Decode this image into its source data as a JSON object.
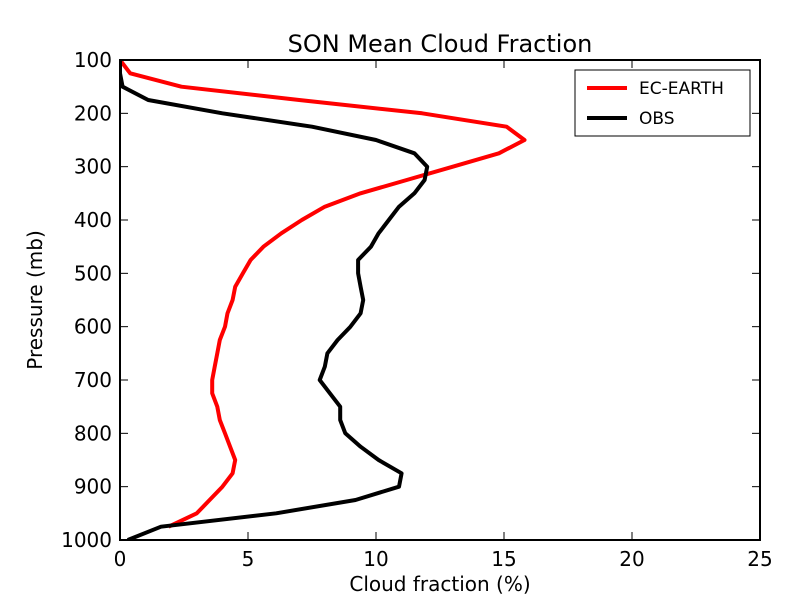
{
  "chart_data": {
    "type": "line",
    "title": "SON Mean Cloud Fraction",
    "xlabel": "Cloud fraction (%)",
    "ylabel": "Pressure (mb)",
    "xlim": [
      0,
      25
    ],
    "ylim": [
      1000,
      100
    ],
    "y_inverted": true,
    "xticks": [
      0,
      5,
      10,
      15,
      20,
      25
    ],
    "yticks": [
      100,
      200,
      300,
      400,
      500,
      600,
      700,
      800,
      900,
      1000
    ],
    "grid": false,
    "legend_position": "top-right",
    "series": [
      {
        "name": "EC-EARTH",
        "color": "#ff0000",
        "points": [
          [
            0.0,
            100
          ],
          [
            0.4,
            125
          ],
          [
            2.4,
            150
          ],
          [
            7.0,
            175
          ],
          [
            11.8,
            200
          ],
          [
            15.1,
            225
          ],
          [
            15.8,
            250
          ],
          [
            14.8,
            275
          ],
          [
            13.0,
            300
          ],
          [
            11.2,
            325
          ],
          [
            9.4,
            350
          ],
          [
            8.0,
            375
          ],
          [
            7.1,
            400
          ],
          [
            6.3,
            425
          ],
          [
            5.6,
            450
          ],
          [
            5.1,
            475
          ],
          [
            4.8,
            500
          ],
          [
            4.5,
            525
          ],
          [
            4.4,
            550
          ],
          [
            4.2,
            575
          ],
          [
            4.1,
            600
          ],
          [
            3.9,
            625
          ],
          [
            3.8,
            650
          ],
          [
            3.7,
            675
          ],
          [
            3.6,
            700
          ],
          [
            3.6,
            725
          ],
          [
            3.8,
            750
          ],
          [
            3.9,
            775
          ],
          [
            4.1,
            800
          ],
          [
            4.3,
            825
          ],
          [
            4.5,
            850
          ],
          [
            4.4,
            875
          ],
          [
            4.0,
            900
          ],
          [
            3.5,
            925
          ],
          [
            3.0,
            950
          ],
          [
            1.9,
            975
          ]
        ]
      },
      {
        "name": "OBS",
        "color": "#000000",
        "points": [
          [
            0.0,
            100
          ],
          [
            0.0,
            125
          ],
          [
            0.1,
            150
          ],
          [
            1.1,
            175
          ],
          [
            4.0,
            200
          ],
          [
            7.5,
            225
          ],
          [
            10.0,
            250
          ],
          [
            11.5,
            275
          ],
          [
            12.0,
            300
          ],
          [
            11.9,
            325
          ],
          [
            11.5,
            350
          ],
          [
            10.9,
            375
          ],
          [
            10.5,
            400
          ],
          [
            10.1,
            425
          ],
          [
            9.8,
            450
          ],
          [
            9.3,
            475
          ],
          [
            9.3,
            500
          ],
          [
            9.4,
            525
          ],
          [
            9.5,
            550
          ],
          [
            9.4,
            575
          ],
          [
            9.0,
            600
          ],
          [
            8.5,
            625
          ],
          [
            8.1,
            650
          ],
          [
            8.0,
            675
          ],
          [
            7.8,
            700
          ],
          [
            8.2,
            725
          ],
          [
            8.6,
            750
          ],
          [
            8.6,
            775
          ],
          [
            8.8,
            800
          ],
          [
            9.4,
            825
          ],
          [
            10.1,
            850
          ],
          [
            11.0,
            875
          ],
          [
            10.9,
            900
          ],
          [
            9.2,
            925
          ],
          [
            6.1,
            950
          ],
          [
            1.6,
            975
          ],
          [
            0.3,
            1000
          ]
        ]
      }
    ]
  }
}
